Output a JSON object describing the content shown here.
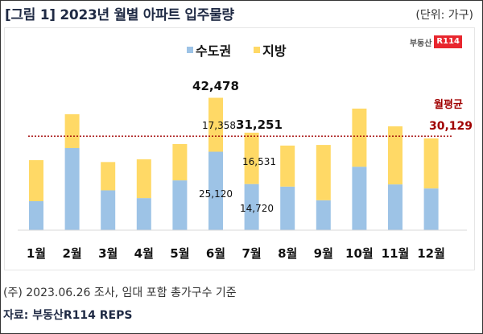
{
  "header": {
    "title": "[그림 1] 2023년 월별 아파트 입주물량",
    "unit": "(단위: 가구)"
  },
  "logo": {
    "text": "부동산",
    "badge": "R114"
  },
  "footer": {
    "note": "(주) 2023.06.26 조사, 임대 포함 총가구수 기준",
    "source": "자료: 부동산R114 REPS"
  },
  "colors": {
    "capital": "#9dc3e6",
    "regional": "#ffd966",
    "average_line": "#a00000",
    "text": "#111111"
  },
  "chart_data": {
    "type": "bar",
    "stacked": true,
    "title": "2023년 월별 아파트 입주물량",
    "xlabel": "",
    "ylabel": "가구",
    "ylim": [
      0,
      45000
    ],
    "categories": [
      "1월",
      "2월",
      "3월",
      "4월",
      "5월",
      "6월",
      "7월",
      "8월",
      "9월",
      "10월",
      "11월",
      "12월"
    ],
    "series": [
      {
        "name": "수도권",
        "values": [
          9200,
          26300,
          12700,
          10200,
          15900,
          25120,
          14720,
          13900,
          9500,
          20300,
          14600,
          13300
        ]
      },
      {
        "name": "지방",
        "values": [
          13200,
          10900,
          9100,
          12500,
          11700,
          17358,
          16531,
          13200,
          17800,
          18700,
          18700,
          16100
        ]
      }
    ],
    "data_labels": [
      {
        "category": "6월",
        "series": "total",
        "text": "42,478"
      },
      {
        "category": "6월",
        "series": "지방",
        "text": "17,358"
      },
      {
        "category": "6월",
        "series": "수도권",
        "text": "25,120"
      },
      {
        "category": "7월",
        "series": "total",
        "text": "31,251"
      },
      {
        "category": "7월",
        "series": "지방",
        "text": "16,531"
      },
      {
        "category": "7월",
        "series": "수도권",
        "text": "14,720"
      }
    ],
    "average": {
      "label": "월평균",
      "value": 30129,
      "value_text": "30,129"
    },
    "legend": "top-center",
    "grid": false
  }
}
